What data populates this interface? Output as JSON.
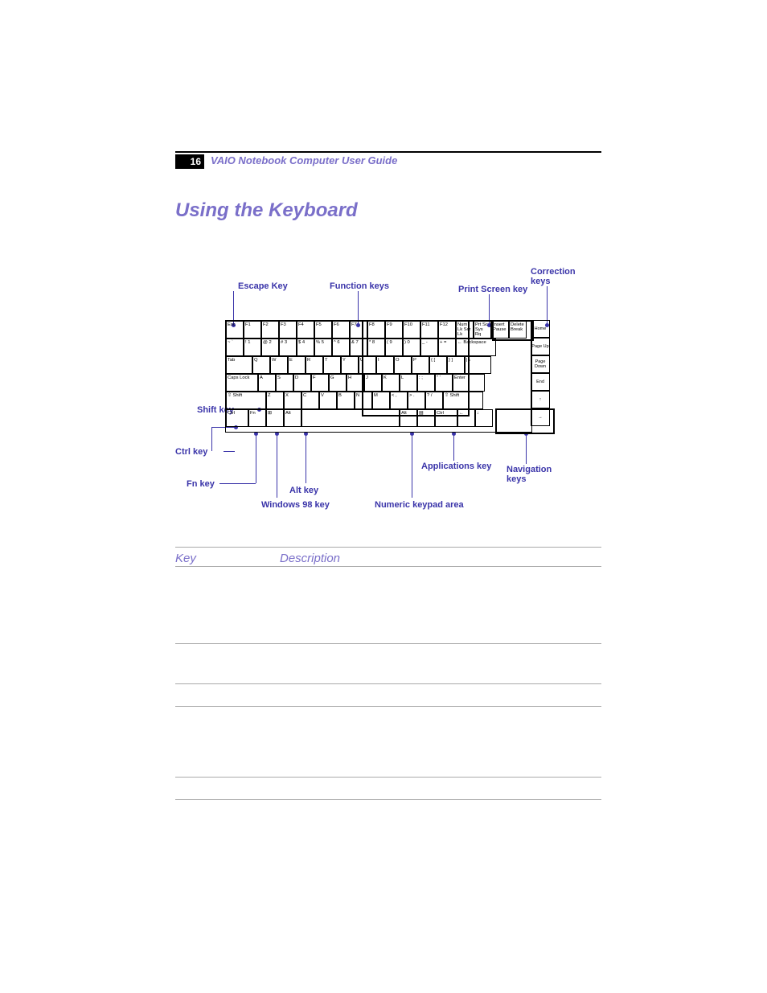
{
  "header": {
    "pageNumber": "16",
    "guideTitle": "VAIO Notebook Computer User Guide"
  },
  "sectionTitle": "Using the Keyboard",
  "colors": {
    "accentPurple": "#7a6fc9",
    "calloutBlue": "#3a34a9",
    "black": "#000000"
  },
  "figure": {
    "labels": {
      "escape": "Escape Key",
      "functionKeys": "Function keys",
      "printScreen": "Print Screen key",
      "correction": "Correction keys",
      "shift": "Shift key",
      "ctrl": "Ctrl key",
      "fn": "Fn key",
      "alt": "Alt key",
      "win98": "Windows 98 key",
      "numericKeypad": "Numeric keypad area",
      "applications": "Applications key",
      "navigation": "Navigation keys"
    },
    "sideKeys": [
      "Home",
      "Page Up",
      "Page Down",
      "End",
      "↑",
      "→"
    ],
    "row1": [
      "Esc",
      "F1",
      "F2",
      "F3",
      "F4",
      "F5",
      "F6",
      "F7",
      "F8",
      "F9",
      "F10",
      "F11",
      "F12",
      "Num Lk Scr Lk",
      "Prt Sc Sys Rq",
      "Insert Pause",
      "Delete Break"
    ],
    "row2": [
      "~ `",
      "! 1",
      "@ 2",
      "# 3",
      "$ 4",
      "% 5",
      "^ 6",
      "& 7",
      "* 8",
      "( 9",
      ") 0",
      "_ -",
      "+ =",
      "← Backspace"
    ],
    "row3": [
      "Tab",
      "Q",
      "W",
      "E",
      "R",
      "T",
      "Y",
      "U",
      "I",
      "O",
      "P",
      "{ [",
      "} ]",
      "| \\"
    ],
    "row4": [
      "Caps Lock",
      "A",
      "S",
      "D",
      "F",
      "G",
      "H",
      "J",
      "K",
      "L",
      ": ;",
      "\" '",
      "Enter"
    ],
    "row5": [
      "⇧ Shift",
      "Z",
      "X",
      "C",
      "V",
      "B",
      "N",
      "M",
      "< ,",
      "> .",
      "? /",
      "⇧ Shift"
    ],
    "row6": [
      "Ctrl",
      "Fn",
      "⊞",
      "Alt",
      "",
      "Alt",
      "▤",
      "Ctrl",
      "←",
      "↓"
    ]
  },
  "table": {
    "headers": {
      "key": "Key",
      "description": "Description"
    },
    "rulePositions": [
      704,
      800,
      850,
      878,
      966,
      994
    ]
  }
}
